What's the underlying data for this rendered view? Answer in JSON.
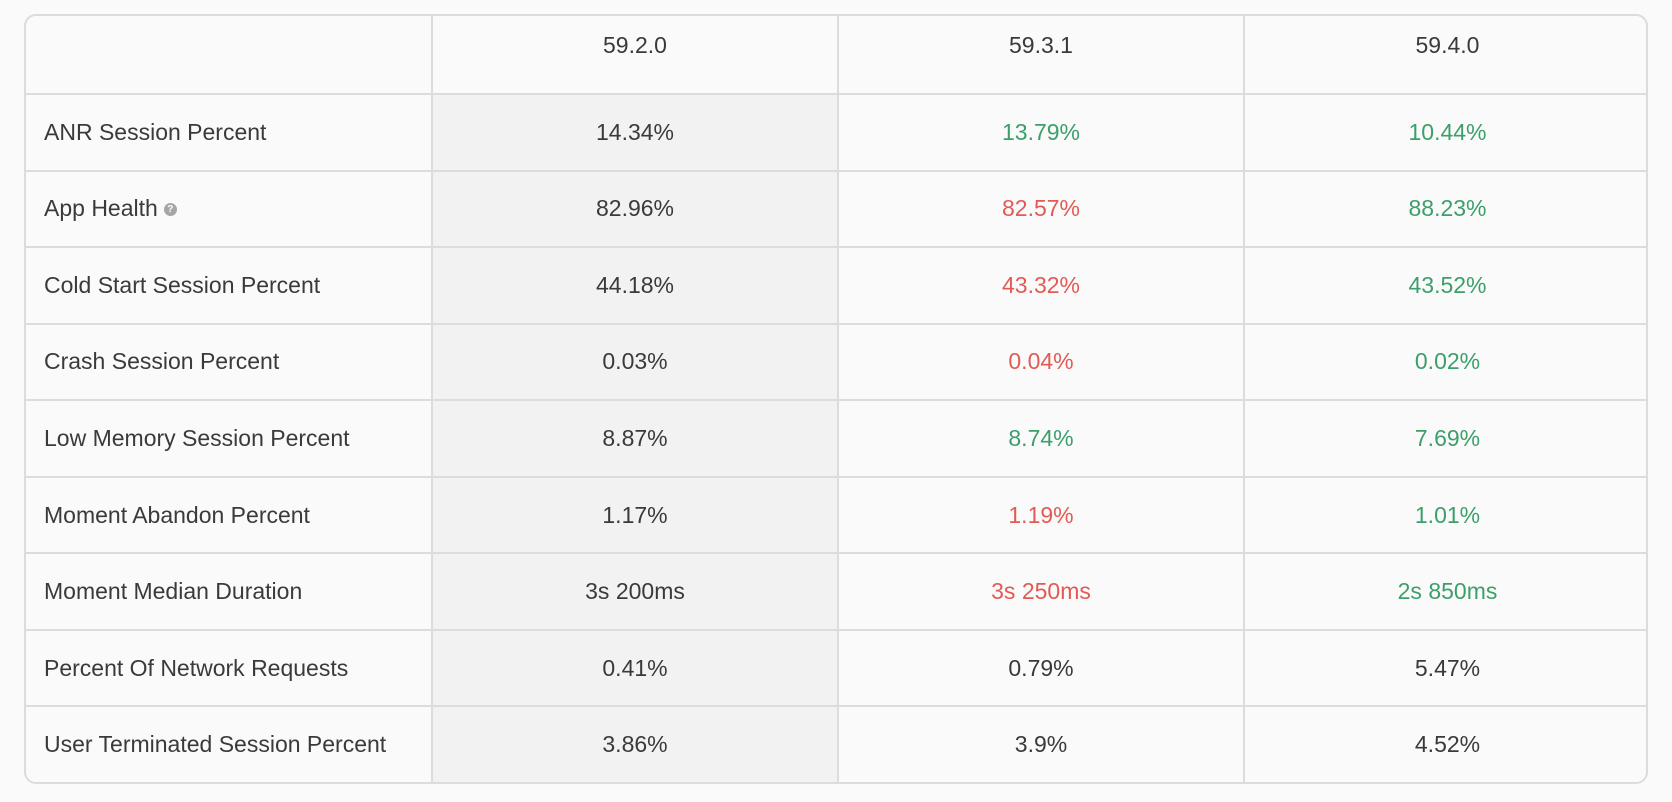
{
  "header": {
    "corner": "",
    "versions": [
      "59.2.0",
      "59.3.1",
      "59.4.0"
    ]
  },
  "colors": {
    "good": "#3c9f6a",
    "bad": "#e35a55",
    "neutral": "#3a3a3a"
  },
  "rows": [
    {
      "label": "ANR Session Percent",
      "help_icon": false,
      "values": [
        {
          "text": "14.34%",
          "status": "neutral"
        },
        {
          "text": "13.79%",
          "status": "good"
        },
        {
          "text": "10.44%",
          "status": "good"
        }
      ]
    },
    {
      "label": "App Health",
      "help_icon": true,
      "icon": "question-icon",
      "values": [
        {
          "text": "82.96%",
          "status": "neutral"
        },
        {
          "text": "82.57%",
          "status": "bad"
        },
        {
          "text": "88.23%",
          "status": "good"
        }
      ]
    },
    {
      "label": "Cold Start Session Percent",
      "help_icon": false,
      "values": [
        {
          "text": "44.18%",
          "status": "neutral"
        },
        {
          "text": "43.32%",
          "status": "bad"
        },
        {
          "text": "43.52%",
          "status": "good"
        }
      ]
    },
    {
      "label": "Crash Session Percent",
      "help_icon": false,
      "values": [
        {
          "text": "0.03%",
          "status": "neutral"
        },
        {
          "text": "0.04%",
          "status": "bad"
        },
        {
          "text": "0.02%",
          "status": "good"
        }
      ]
    },
    {
      "label": "Low Memory Session Percent",
      "help_icon": false,
      "values": [
        {
          "text": "8.87%",
          "status": "neutral"
        },
        {
          "text": "8.74%",
          "status": "good"
        },
        {
          "text": "7.69%",
          "status": "good"
        }
      ]
    },
    {
      "label": "Moment Abandon Percent",
      "help_icon": false,
      "values": [
        {
          "text": "1.17%",
          "status": "neutral"
        },
        {
          "text": "1.19%",
          "status": "bad"
        },
        {
          "text": "1.01%",
          "status": "good"
        }
      ]
    },
    {
      "label": "Moment Median Duration",
      "help_icon": false,
      "values": [
        {
          "text": "3s 200ms",
          "status": "neutral"
        },
        {
          "text": "3s 250ms",
          "status": "bad"
        },
        {
          "text": "2s 850ms",
          "status": "good"
        }
      ]
    },
    {
      "label": "Percent Of Network Requests",
      "help_icon": false,
      "values": [
        {
          "text": "0.41%",
          "status": "neutral"
        },
        {
          "text": "0.79%",
          "status": "neutral"
        },
        {
          "text": "5.47%",
          "status": "neutral"
        }
      ]
    },
    {
      "label": "User Terminated Session Percent",
      "help_icon": false,
      "values": [
        {
          "text": "3.86%",
          "status": "neutral"
        },
        {
          "text": "3.9%",
          "status": "neutral"
        },
        {
          "text": "4.52%",
          "status": "neutral"
        }
      ]
    }
  ]
}
